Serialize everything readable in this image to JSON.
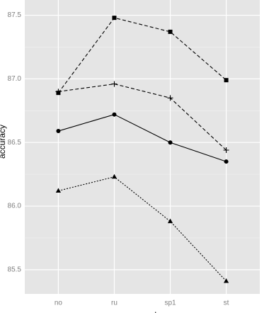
{
  "chart_data": {
    "type": "line",
    "x_label": "approach",
    "y_label": "accuracy",
    "categories": [
      "no",
      "ru",
      "sp1",
      "st"
    ],
    "series": [
      {
        "color": "#000000",
        "marker": "square",
        "dash": "dashed",
        "values": [
          86.89,
          87.48,
          87.37,
          86.99
        ]
      },
      {
        "color": "#000000",
        "marker": "plus",
        "dash": "dashed",
        "values": [
          86.9,
          86.96,
          86.85,
          86.44
        ]
      },
      {
        "color": "#000000",
        "marker": "circle",
        "dash": "solid",
        "values": [
          86.59,
          86.72,
          86.5,
          86.35
        ]
      },
      {
        "color": "#000000",
        "marker": "triangle",
        "dash": "dotted",
        "values": [
          86.12,
          86.23,
          85.88,
          85.41
        ]
      }
    ],
    "ylim": [
      85.31,
      87.62
    ],
    "yticks": [
      {
        "value": 85.5,
        "label": "85.5"
      },
      {
        "value": 86,
        "label": "86.0"
      },
      {
        "value": 86.5,
        "label": "86.5"
      },
      {
        "value": 87,
        "label": "87.0"
      },
      {
        "value": 87.5,
        "label": "87.5"
      }
    ],
    "grid": true,
    "background": "#e5e5e5"
  }
}
